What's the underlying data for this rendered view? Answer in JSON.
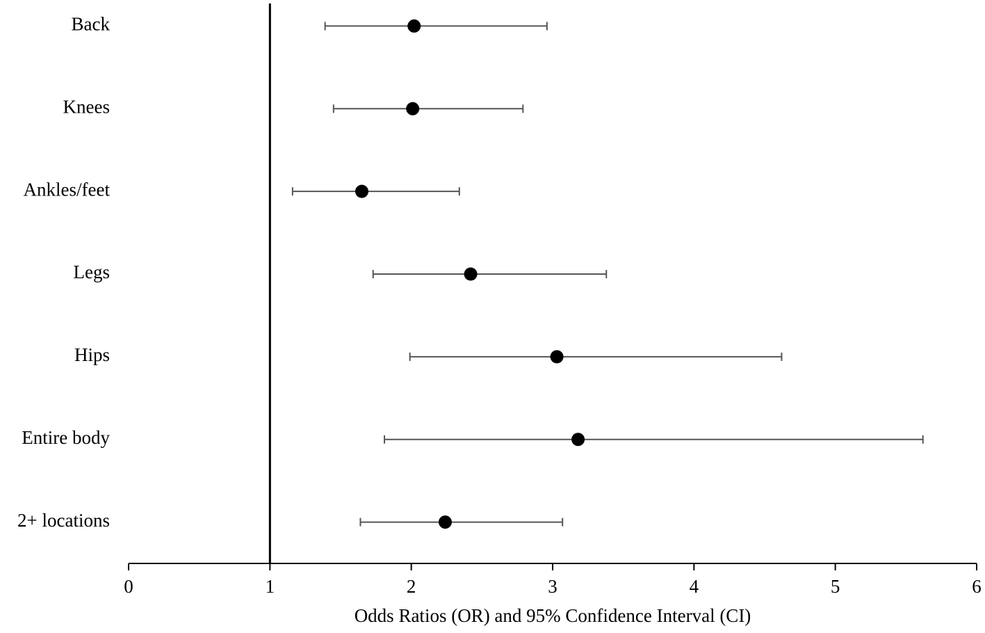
{
  "chart_data": {
    "type": "forest",
    "xlabel": "Odds Ratios (OR) and 95% Confidence Interval (CI)",
    "categories": [
      "Back",
      "Knees",
      "Ankles/feet",
      "Legs",
      "Hips",
      "Entire body",
      "2+ locations"
    ],
    "values": [
      2.02,
      2.01,
      1.65,
      2.42,
      3.03,
      3.18,
      2.24
    ],
    "lower": [
      1.39,
      1.45,
      1.16,
      1.73,
      1.99,
      1.81,
      1.64
    ],
    "upper": [
      2.96,
      2.79,
      2.34,
      3.38,
      4.62,
      5.62,
      3.07
    ],
    "color": "#000000",
    "whisker_color": "#555555",
    "xlim": [
      0,
      6
    ],
    "xticks": [
      0,
      1,
      2,
      3,
      4,
      5,
      6
    ],
    "ref_line": 1
  }
}
